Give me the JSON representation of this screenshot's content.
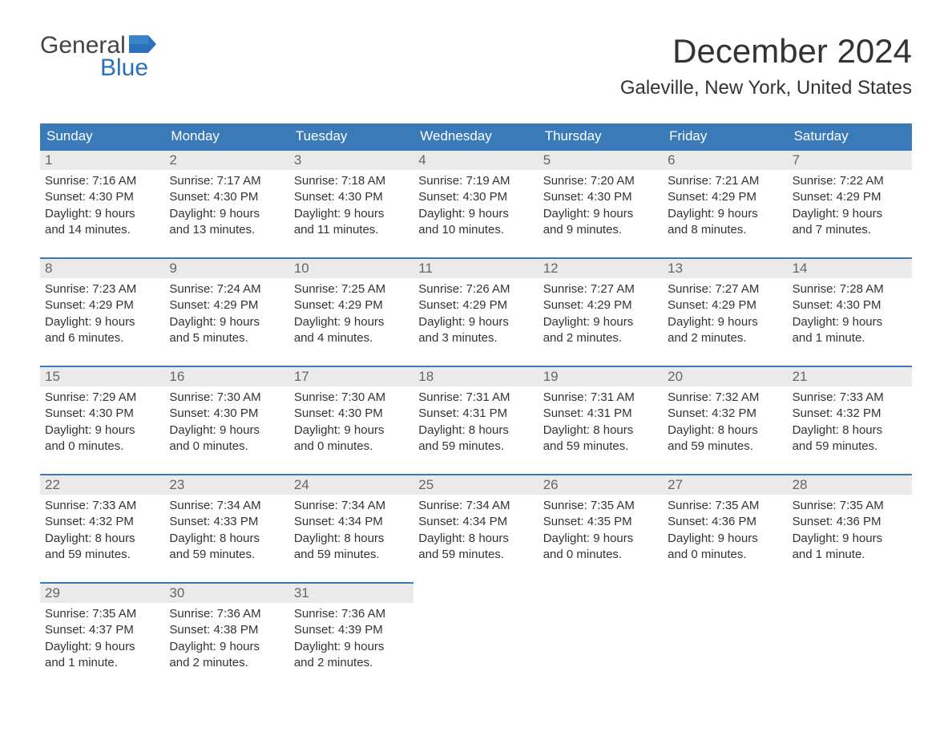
{
  "logo": {
    "word1": "General",
    "word2": "Blue"
  },
  "title": "December 2024",
  "location": "Galeville, New York, United States",
  "colors": {
    "header_bg": "#3a7ab8",
    "header_fg": "#ffffff",
    "daynum_bg": "#eaeaea",
    "border_top": "#3a7ab8",
    "text": "#333333",
    "logo_blue": "#2c6fbb"
  },
  "fonts": {
    "month_title_size": 42,
    "location_size": 24,
    "daylabel_size": 17,
    "daynum_size": 17,
    "body_size": 15
  },
  "day_labels": [
    "Sunday",
    "Monday",
    "Tuesday",
    "Wednesday",
    "Thursday",
    "Friday",
    "Saturday"
  ],
  "weeks": [
    [
      {
        "n": "1",
        "sunrise": "Sunrise: 7:16 AM",
        "sunset": "Sunset: 4:30 PM",
        "d1": "Daylight: 9 hours",
        "d2": "and 14 minutes."
      },
      {
        "n": "2",
        "sunrise": "Sunrise: 7:17 AM",
        "sunset": "Sunset: 4:30 PM",
        "d1": "Daylight: 9 hours",
        "d2": "and 13 minutes."
      },
      {
        "n": "3",
        "sunrise": "Sunrise: 7:18 AM",
        "sunset": "Sunset: 4:30 PM",
        "d1": "Daylight: 9 hours",
        "d2": "and 11 minutes."
      },
      {
        "n": "4",
        "sunrise": "Sunrise: 7:19 AM",
        "sunset": "Sunset: 4:30 PM",
        "d1": "Daylight: 9 hours",
        "d2": "and 10 minutes."
      },
      {
        "n": "5",
        "sunrise": "Sunrise: 7:20 AM",
        "sunset": "Sunset: 4:30 PM",
        "d1": "Daylight: 9 hours",
        "d2": "and 9 minutes."
      },
      {
        "n": "6",
        "sunrise": "Sunrise: 7:21 AM",
        "sunset": "Sunset: 4:29 PM",
        "d1": "Daylight: 9 hours",
        "d2": "and 8 minutes."
      },
      {
        "n": "7",
        "sunrise": "Sunrise: 7:22 AM",
        "sunset": "Sunset: 4:29 PM",
        "d1": "Daylight: 9 hours",
        "d2": "and 7 minutes."
      }
    ],
    [
      {
        "n": "8",
        "sunrise": "Sunrise: 7:23 AM",
        "sunset": "Sunset: 4:29 PM",
        "d1": "Daylight: 9 hours",
        "d2": "and 6 minutes."
      },
      {
        "n": "9",
        "sunrise": "Sunrise: 7:24 AM",
        "sunset": "Sunset: 4:29 PM",
        "d1": "Daylight: 9 hours",
        "d2": "and 5 minutes."
      },
      {
        "n": "10",
        "sunrise": "Sunrise: 7:25 AM",
        "sunset": "Sunset: 4:29 PM",
        "d1": "Daylight: 9 hours",
        "d2": "and 4 minutes."
      },
      {
        "n": "11",
        "sunrise": "Sunrise: 7:26 AM",
        "sunset": "Sunset: 4:29 PM",
        "d1": "Daylight: 9 hours",
        "d2": "and 3 minutes."
      },
      {
        "n": "12",
        "sunrise": "Sunrise: 7:27 AM",
        "sunset": "Sunset: 4:29 PM",
        "d1": "Daylight: 9 hours",
        "d2": "and 2 minutes."
      },
      {
        "n": "13",
        "sunrise": "Sunrise: 7:27 AM",
        "sunset": "Sunset: 4:29 PM",
        "d1": "Daylight: 9 hours",
        "d2": "and 2 minutes."
      },
      {
        "n": "14",
        "sunrise": "Sunrise: 7:28 AM",
        "sunset": "Sunset: 4:30 PM",
        "d1": "Daylight: 9 hours",
        "d2": "and 1 minute."
      }
    ],
    [
      {
        "n": "15",
        "sunrise": "Sunrise: 7:29 AM",
        "sunset": "Sunset: 4:30 PM",
        "d1": "Daylight: 9 hours",
        "d2": "and 0 minutes."
      },
      {
        "n": "16",
        "sunrise": "Sunrise: 7:30 AM",
        "sunset": "Sunset: 4:30 PM",
        "d1": "Daylight: 9 hours",
        "d2": "and 0 minutes."
      },
      {
        "n": "17",
        "sunrise": "Sunrise: 7:30 AM",
        "sunset": "Sunset: 4:30 PM",
        "d1": "Daylight: 9 hours",
        "d2": "and 0 minutes."
      },
      {
        "n": "18",
        "sunrise": "Sunrise: 7:31 AM",
        "sunset": "Sunset: 4:31 PM",
        "d1": "Daylight: 8 hours",
        "d2": "and 59 minutes."
      },
      {
        "n": "19",
        "sunrise": "Sunrise: 7:31 AM",
        "sunset": "Sunset: 4:31 PM",
        "d1": "Daylight: 8 hours",
        "d2": "and 59 minutes."
      },
      {
        "n": "20",
        "sunrise": "Sunrise: 7:32 AM",
        "sunset": "Sunset: 4:32 PM",
        "d1": "Daylight: 8 hours",
        "d2": "and 59 minutes."
      },
      {
        "n": "21",
        "sunrise": "Sunrise: 7:33 AM",
        "sunset": "Sunset: 4:32 PM",
        "d1": "Daylight: 8 hours",
        "d2": "and 59 minutes."
      }
    ],
    [
      {
        "n": "22",
        "sunrise": "Sunrise: 7:33 AM",
        "sunset": "Sunset: 4:32 PM",
        "d1": "Daylight: 8 hours",
        "d2": "and 59 minutes."
      },
      {
        "n": "23",
        "sunrise": "Sunrise: 7:34 AM",
        "sunset": "Sunset: 4:33 PM",
        "d1": "Daylight: 8 hours",
        "d2": "and 59 minutes."
      },
      {
        "n": "24",
        "sunrise": "Sunrise: 7:34 AM",
        "sunset": "Sunset: 4:34 PM",
        "d1": "Daylight: 8 hours",
        "d2": "and 59 minutes."
      },
      {
        "n": "25",
        "sunrise": "Sunrise: 7:34 AM",
        "sunset": "Sunset: 4:34 PM",
        "d1": "Daylight: 8 hours",
        "d2": "and 59 minutes."
      },
      {
        "n": "26",
        "sunrise": "Sunrise: 7:35 AM",
        "sunset": "Sunset: 4:35 PM",
        "d1": "Daylight: 9 hours",
        "d2": "and 0 minutes."
      },
      {
        "n": "27",
        "sunrise": "Sunrise: 7:35 AM",
        "sunset": "Sunset: 4:36 PM",
        "d1": "Daylight: 9 hours",
        "d2": "and 0 minutes."
      },
      {
        "n": "28",
        "sunrise": "Sunrise: 7:35 AM",
        "sunset": "Sunset: 4:36 PM",
        "d1": "Daylight: 9 hours",
        "d2": "and 1 minute."
      }
    ],
    [
      {
        "n": "29",
        "sunrise": "Sunrise: 7:35 AM",
        "sunset": "Sunset: 4:37 PM",
        "d1": "Daylight: 9 hours",
        "d2": "and 1 minute."
      },
      {
        "n": "30",
        "sunrise": "Sunrise: 7:36 AM",
        "sunset": "Sunset: 4:38 PM",
        "d1": "Daylight: 9 hours",
        "d2": "and 2 minutes."
      },
      {
        "n": "31",
        "sunrise": "Sunrise: 7:36 AM",
        "sunset": "Sunset: 4:39 PM",
        "d1": "Daylight: 9 hours",
        "d2": "and 2 minutes."
      },
      {
        "n": "",
        "sunrise": "",
        "sunset": "",
        "d1": "",
        "d2": ""
      },
      {
        "n": "",
        "sunrise": "",
        "sunset": "",
        "d1": "",
        "d2": ""
      },
      {
        "n": "",
        "sunrise": "",
        "sunset": "",
        "d1": "",
        "d2": ""
      },
      {
        "n": "",
        "sunrise": "",
        "sunset": "",
        "d1": "",
        "d2": ""
      }
    ]
  ]
}
